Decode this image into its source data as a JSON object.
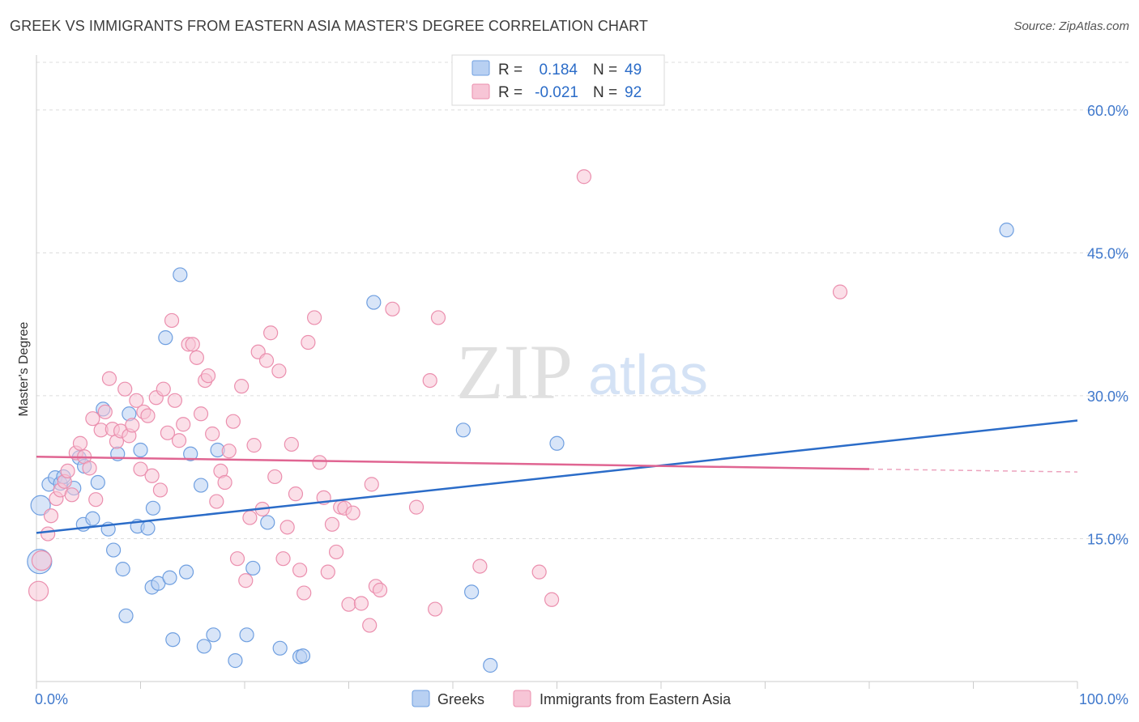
{
  "chart_data": {
    "type": "scatter",
    "title": "GREEK VS IMMIGRANTS FROM EASTERN ASIA MASTER'S DEGREE CORRELATION CHART",
    "source": "Source: ZipAtlas.com",
    "ylabel": "Master's Degree",
    "xlabel": "",
    "xlim": [
      0,
      100
    ],
    "ylim": [
      0,
      65
    ],
    "x_tick_labels": [
      {
        "value": 0,
        "label": "0.0%"
      },
      {
        "value": 100,
        "label": "100.0%"
      }
    ],
    "y_tick_labels": [
      {
        "value": 15,
        "label": "15.0%"
      },
      {
        "value": 30,
        "label": "30.0%"
      },
      {
        "value": 45,
        "label": "45.0%"
      },
      {
        "value": 60,
        "label": "60.0%"
      }
    ],
    "grid": true,
    "watermark": {
      "zip": "ZIP",
      "atlas": "atlas"
    },
    "legend_position": "top-center",
    "stats": [
      {
        "r_label": "R =",
        "r_value": "0.184",
        "n_label": "N =",
        "n_value": "49"
      },
      {
        "r_label": "R =",
        "r_value": "-0.021",
        "n_label": "N =",
        "n_value": "92"
      }
    ],
    "series": [
      {
        "name": "Greeks",
        "color": "#6f9fe0",
        "fill": "#b8d0f2",
        "line_color": "#2b6cc8",
        "trend": {
          "x": [
            0,
            100
          ],
          "y": [
            15.6,
            27.4
          ]
        },
        "points": [
          {
            "x": 0.3,
            "y": 12.6,
            "s": 3
          },
          {
            "x": 0.4,
            "y": 18.5,
            "s": 2
          },
          {
            "x": 1.2,
            "y": 20.7,
            "s": 1
          },
          {
            "x": 1.8,
            "y": 21.4,
            "s": 1
          },
          {
            "x": 2.3,
            "y": 20.8,
            "s": 1
          },
          {
            "x": 2.6,
            "y": 21.5,
            "s": 1
          },
          {
            "x": 3.6,
            "y": 20.3,
            "s": 1
          },
          {
            "x": 4.1,
            "y": 23.5,
            "s": 1
          },
          {
            "x": 4.6,
            "y": 22.6,
            "s": 1
          },
          {
            "x": 4.5,
            "y": 16.5,
            "s": 1
          },
          {
            "x": 5.4,
            "y": 17.1,
            "s": 1
          },
          {
            "x": 5.9,
            "y": 20.9,
            "s": 1
          },
          {
            "x": 6.4,
            "y": 28.6,
            "s": 1
          },
          {
            "x": 6.9,
            "y": 16.0,
            "s": 1
          },
          {
            "x": 7.4,
            "y": 13.8,
            "s": 1
          },
          {
            "x": 7.8,
            "y": 23.9,
            "s": 1
          },
          {
            "x": 8.3,
            "y": 11.8,
            "s": 1
          },
          {
            "x": 8.6,
            "y": 6.9,
            "s": 1
          },
          {
            "x": 8.9,
            "y": 28.1,
            "s": 1
          },
          {
            "x": 9.7,
            "y": 16.3,
            "s": 1
          },
          {
            "x": 10.0,
            "y": 24.3,
            "s": 1
          },
          {
            "x": 10.7,
            "y": 16.1,
            "s": 1
          },
          {
            "x": 11.1,
            "y": 9.9,
            "s": 1
          },
          {
            "x": 11.2,
            "y": 18.2,
            "s": 1
          },
          {
            "x": 11.7,
            "y": 10.3,
            "s": 1
          },
          {
            "x": 12.4,
            "y": 36.1,
            "s": 1
          },
          {
            "x": 12.8,
            "y": 10.9,
            "s": 1
          },
          {
            "x": 13.1,
            "y": 4.4,
            "s": 1
          },
          {
            "x": 13.8,
            "y": 42.7,
            "s": 1
          },
          {
            "x": 14.4,
            "y": 11.5,
            "s": 1
          },
          {
            "x": 14.8,
            "y": 23.9,
            "s": 1
          },
          {
            "x": 15.8,
            "y": 20.6,
            "s": 1
          },
          {
            "x": 16.1,
            "y": 3.7,
            "s": 1
          },
          {
            "x": 17.0,
            "y": 4.9,
            "s": 1
          },
          {
            "x": 17.4,
            "y": 24.3,
            "s": 1
          },
          {
            "x": 19.1,
            "y": 2.2,
            "s": 1
          },
          {
            "x": 20.2,
            "y": 4.9,
            "s": 1
          },
          {
            "x": 20.8,
            "y": 11.9,
            "s": 1
          },
          {
            "x": 22.2,
            "y": 16.7,
            "s": 1
          },
          {
            "x": 23.4,
            "y": 3.5,
            "s": 1
          },
          {
            "x": 25.3,
            "y": 2.6,
            "s": 1
          },
          {
            "x": 25.6,
            "y": 2.7,
            "s": 1
          },
          {
            "x": 32.4,
            "y": 39.8,
            "s": 1
          },
          {
            "x": 41.0,
            "y": 26.4,
            "s": 1
          },
          {
            "x": 41.8,
            "y": 9.4,
            "s": 1
          },
          {
            "x": 43.6,
            "y": 1.7,
            "s": 1
          },
          {
            "x": 50.0,
            "y": 25.0,
            "s": 1
          },
          {
            "x": 93.2,
            "y": 47.4,
            "s": 1
          }
        ]
      },
      {
        "name": "Immigrants from Eastern Asia",
        "color": "#eb8fae",
        "fill": "#f7c5d6",
        "line_color": "#e06592",
        "trend": {
          "x": [
            0,
            80
          ],
          "y": [
            23.6,
            22.3
          ]
        },
        "trend_dashed": {
          "x": [
            80,
            100
          ],
          "y": [
            22.3,
            22.0
          ]
        },
        "points": [
          {
            "x": 0.2,
            "y": 9.5,
            "s": 2
          },
          {
            "x": 0.5,
            "y": 12.7,
            "s": 2
          },
          {
            "x": 1.1,
            "y": 15.5,
            "s": 1
          },
          {
            "x": 1.4,
            "y": 17.4,
            "s": 1
          },
          {
            "x": 1.9,
            "y": 19.2,
            "s": 1
          },
          {
            "x": 2.3,
            "y": 20.1,
            "s": 1
          },
          {
            "x": 2.7,
            "y": 21.0,
            "s": 1
          },
          {
            "x": 3.0,
            "y": 22.1,
            "s": 1
          },
          {
            "x": 3.4,
            "y": 19.6,
            "s": 1
          },
          {
            "x": 3.8,
            "y": 24.0,
            "s": 1
          },
          {
            "x": 4.2,
            "y": 25.0,
            "s": 1
          },
          {
            "x": 4.6,
            "y": 23.6,
            "s": 1
          },
          {
            "x": 5.1,
            "y": 22.4,
            "s": 1
          },
          {
            "x": 5.4,
            "y": 27.6,
            "s": 1
          },
          {
            "x": 5.7,
            "y": 19.1,
            "s": 1
          },
          {
            "x": 6.2,
            "y": 26.4,
            "s": 1
          },
          {
            "x": 6.6,
            "y": 28.3,
            "s": 1
          },
          {
            "x": 7.0,
            "y": 31.8,
            "s": 1
          },
          {
            "x": 7.3,
            "y": 26.5,
            "s": 1
          },
          {
            "x": 7.7,
            "y": 25.2,
            "s": 1
          },
          {
            "x": 8.1,
            "y": 26.3,
            "s": 1
          },
          {
            "x": 8.5,
            "y": 30.7,
            "s": 1
          },
          {
            "x": 8.9,
            "y": 25.8,
            "s": 1
          },
          {
            "x": 9.2,
            "y": 26.9,
            "s": 1
          },
          {
            "x": 9.6,
            "y": 29.5,
            "s": 1
          },
          {
            "x": 10.0,
            "y": 22.3,
            "s": 1
          },
          {
            "x": 10.3,
            "y": 28.3,
            "s": 1
          },
          {
            "x": 10.7,
            "y": 27.9,
            "s": 1
          },
          {
            "x": 11.1,
            "y": 21.6,
            "s": 1
          },
          {
            "x": 11.5,
            "y": 29.8,
            "s": 1
          },
          {
            "x": 11.9,
            "y": 20.1,
            "s": 1
          },
          {
            "x": 12.2,
            "y": 30.7,
            "s": 1
          },
          {
            "x": 12.6,
            "y": 26.1,
            "s": 1
          },
          {
            "x": 13.0,
            "y": 37.9,
            "s": 1
          },
          {
            "x": 13.3,
            "y": 29.5,
            "s": 1
          },
          {
            "x": 13.7,
            "y": 25.3,
            "s": 1
          },
          {
            "x": 14.1,
            "y": 27.0,
            "s": 1
          },
          {
            "x": 14.6,
            "y": 35.4,
            "s": 1
          },
          {
            "x": 15.0,
            "y": 35.4,
            "s": 1
          },
          {
            "x": 15.4,
            "y": 34.0,
            "s": 1
          },
          {
            "x": 15.8,
            "y": 28.1,
            "s": 1
          },
          {
            "x": 16.2,
            "y": 31.6,
            "s": 1
          },
          {
            "x": 16.5,
            "y": 32.1,
            "s": 1
          },
          {
            "x": 16.9,
            "y": 26.0,
            "s": 1
          },
          {
            "x": 17.3,
            "y": 18.9,
            "s": 1
          },
          {
            "x": 17.7,
            "y": 22.1,
            "s": 1
          },
          {
            "x": 18.1,
            "y": 20.9,
            "s": 1
          },
          {
            "x": 18.5,
            "y": 24.2,
            "s": 1
          },
          {
            "x": 18.9,
            "y": 27.3,
            "s": 1
          },
          {
            "x": 19.3,
            "y": 12.9,
            "s": 1
          },
          {
            "x": 19.7,
            "y": 31.0,
            "s": 1
          },
          {
            "x": 20.1,
            "y": 10.6,
            "s": 1
          },
          {
            "x": 20.5,
            "y": 17.2,
            "s": 1
          },
          {
            "x": 20.9,
            "y": 24.8,
            "s": 1
          },
          {
            "x": 21.3,
            "y": 34.6,
            "s": 1
          },
          {
            "x": 21.7,
            "y": 18.1,
            "s": 1
          },
          {
            "x": 22.1,
            "y": 33.7,
            "s": 1
          },
          {
            "x": 22.5,
            "y": 36.6,
            "s": 1
          },
          {
            "x": 22.9,
            "y": 21.5,
            "s": 1
          },
          {
            "x": 23.3,
            "y": 32.6,
            "s": 1
          },
          {
            "x": 23.7,
            "y": 12.9,
            "s": 1
          },
          {
            "x": 24.1,
            "y": 16.2,
            "s": 1
          },
          {
            "x": 24.5,
            "y": 24.9,
            "s": 1
          },
          {
            "x": 24.9,
            "y": 19.7,
            "s": 1
          },
          {
            "x": 25.3,
            "y": 11.7,
            "s": 1
          },
          {
            "x": 25.7,
            "y": 9.3,
            "s": 1
          },
          {
            "x": 26.1,
            "y": 35.6,
            "s": 1
          },
          {
            "x": 26.7,
            "y": 38.2,
            "s": 1
          },
          {
            "x": 27.2,
            "y": 23.0,
            "s": 1
          },
          {
            "x": 27.6,
            "y": 19.3,
            "s": 1
          },
          {
            "x": 28.0,
            "y": 11.5,
            "s": 1
          },
          {
            "x": 28.4,
            "y": 16.5,
            "s": 1
          },
          {
            "x": 28.8,
            "y": 13.6,
            "s": 1
          },
          {
            "x": 29.2,
            "y": 18.3,
            "s": 1
          },
          {
            "x": 29.6,
            "y": 18.2,
            "s": 1
          },
          {
            "x": 30.0,
            "y": 8.1,
            "s": 1
          },
          {
            "x": 30.4,
            "y": 17.7,
            "s": 1
          },
          {
            "x": 31.2,
            "y": 8.2,
            "s": 1
          },
          {
            "x": 32.0,
            "y": 5.9,
            "s": 1
          },
          {
            "x": 32.2,
            "y": 20.7,
            "s": 1
          },
          {
            "x": 32.6,
            "y": 10.0,
            "s": 1
          },
          {
            "x": 33.0,
            "y": 9.6,
            "s": 1
          },
          {
            "x": 34.2,
            "y": 39.1,
            "s": 1
          },
          {
            "x": 36.5,
            "y": 18.3,
            "s": 1
          },
          {
            "x": 37.8,
            "y": 31.6,
            "s": 1
          },
          {
            "x": 38.3,
            "y": 7.6,
            "s": 1
          },
          {
            "x": 38.6,
            "y": 38.2,
            "s": 1
          },
          {
            "x": 42.6,
            "y": 12.1,
            "s": 1
          },
          {
            "x": 48.3,
            "y": 11.5,
            "s": 1
          },
          {
            "x": 49.5,
            "y": 8.6,
            "s": 1
          },
          {
            "x": 52.6,
            "y": 53.0,
            "s": 1
          },
          {
            "x": 77.2,
            "y": 40.9,
            "s": 1
          }
        ]
      }
    ]
  }
}
